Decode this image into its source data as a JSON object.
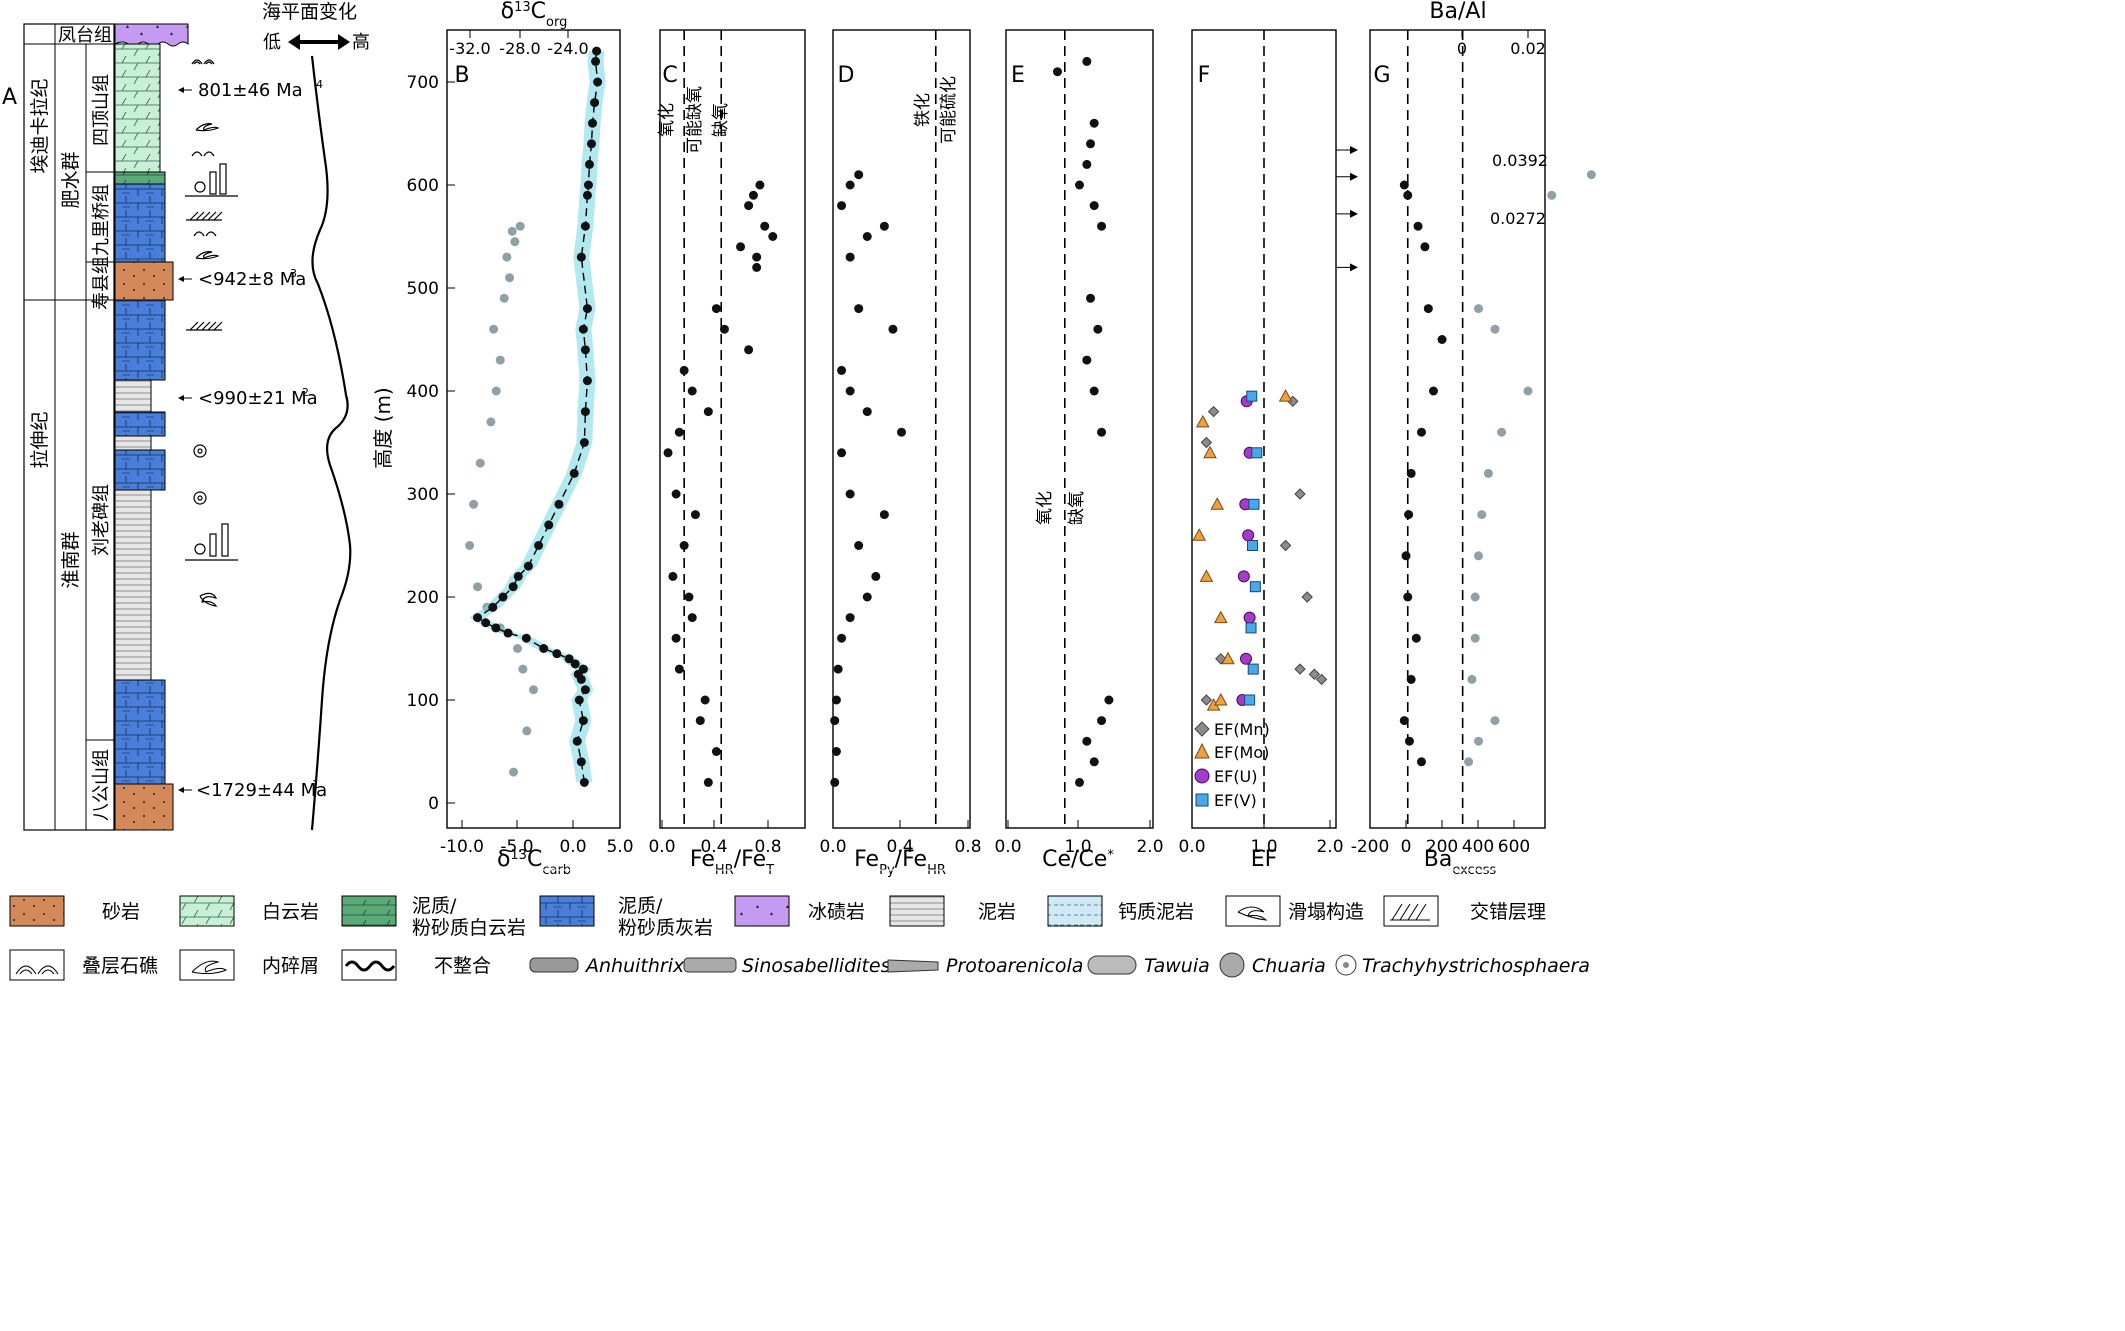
{
  "panel_labels": [
    "A",
    "B",
    "C",
    "D",
    "E",
    "F",
    "G"
  ],
  "strat": {
    "systems": [
      {
        "id": "cryo-sys",
        "label": "埃迪卡拉纪"
      },
      {
        "id": "tonian-sys",
        "label": "拉伸纪"
      }
    ],
    "groups": [
      {
        "id": "feishui",
        "label": "肥水群"
      },
      {
        "id": "huainan",
        "label": "淮南群"
      }
    ],
    "formations": [
      {
        "id": "fengtai",
        "label": "凤台组"
      },
      {
        "id": "sidingshan",
        "label": "四顶山组"
      },
      {
        "id": "jiuliqiao",
        "label": "九里桥组"
      },
      {
        "id": "shouxian",
        "label": "寿县组"
      },
      {
        "id": "liulaobei",
        "label": "刘老碑组"
      },
      {
        "id": "bagongshan",
        "label": "八公山组"
      }
    ],
    "ages": [
      "801±46 Ma",
      "<942±8 Ma",
      "<990±21 Ma",
      "<1729±44 Ma"
    ],
    "age_refs": [
      "4",
      "3",
      "2",
      "1"
    ],
    "sea_level": {
      "title": "海平面变化",
      "low": "低",
      "high": "高"
    }
  },
  "y_axis": {
    "label": "高度 (m)",
    "ticks": [
      "0",
      "100",
      "200",
      "300",
      "400",
      "500",
      "600",
      "700"
    ]
  },
  "panels": {
    "B": {
      "top_title": "δ",
      "top_title_sup": "13",
      "top_title_main": "C",
      "top_title_sub": "org",
      "top_ticks": [
        "-32.0",
        "-28.0",
        "-24.0"
      ],
      "bottom_ticks": [
        "-10.0",
        "-5.0",
        "0.0",
        "5.0"
      ],
      "xlabel_d": "δ",
      "xlabel_sup": "13",
      "xlabel_main": "C",
      "xlabel_sub": "carb"
    },
    "C": {
      "ticks": [
        "0.0",
        "0.4",
        "0.8"
      ],
      "xlabel_main": "Fe",
      "xlabel_sub1": "HR",
      "xlabel_mid": "/Fe",
      "xlabel_sub2": "T",
      "zone_labels": [
        "氧化",
        "可能缺氧",
        "缺氧"
      ]
    },
    "D": {
      "ticks": [
        "0.0",
        "0.4",
        "0.8"
      ],
      "xlabel_main": "Fe",
      "xlabel_sub1": "Py",
      "xlabel_mid": "/Fe",
      "xlabel_sub2": "HR",
      "zone_labels": [
        "铁化",
        "可能硫化"
      ]
    },
    "E": {
      "ticks": [
        "0.0",
        "1.0",
        "2.0"
      ],
      "xlabel_main": "Ce/Ce",
      "xlabel_sup": "*",
      "zone_labels": [
        "氧化",
        "缺氧"
      ]
    },
    "F": {
      "ticks": [
        "0.0",
        "1.0",
        "2.0"
      ],
      "xlabel": "EF",
      "legend": [
        "EF(Mn)",
        "EF(Mo)",
        "EF(U)",
        "EF(V)"
      ]
    },
    "G": {
      "title": "Ba/Al",
      "top_ticks": [
        "0",
        "0.02"
      ],
      "bottom_ticks": [
        "-200",
        "0",
        "200",
        "400",
        "600"
      ],
      "xlabel_main": "Ba",
      "xlabel_sub": "excess",
      "annotations": [
        "0.0392",
        "0.0272"
      ]
    }
  },
  "legend": {
    "lithology": [
      "砂岩",
      "白云岩",
      "泥质/\n粉砂质白云岩",
      "泥质/\n粉砂质灰岩",
      "冰碛岩",
      "泥岩",
      "钙质泥岩",
      "滑塌构造",
      "交错层理"
    ],
    "structures": [
      "叠层石礁",
      "内碎屑",
      "不整合"
    ],
    "fossils": [
      "Anhuithrix",
      "Sinosabellidites",
      "Protoarenicola",
      "Tawuia",
      "Chuaria",
      "Trachyhystrichosphaera"
    ]
  },
  "colors": {
    "sandstone": "#d4895a",
    "dolomite": "#c9efd9",
    "argdolo": "#5aaa78",
    "limestone": "#4a7fd9",
    "tillite": "#c59af2",
    "mudstone": "#e6e6e6",
    "calcmud": "#cfeaf6",
    "black": "#111111",
    "grey": "#8fa0a6",
    "cyan": "#7fd8e6",
    "mn": "#8c8c8c",
    "mo": "#f0a040",
    "u": "#a43cc8",
    "v": "#4aa8e8"
  },
  "chart_data": [
    {
      "panel": "B",
      "type": "scatter",
      "ylabel": "高度 (m)",
      "ylim": [
        0,
        740
      ],
      "series": [
        {
          "axis": "δ13Ccarb",
          "xlim": [
            -12,
            5
          ],
          "note": "black points with LOWESS curve",
          "x": [
            1.5,
            1.2,
            0.8,
            1.4,
            1.0,
            1.6,
            1.2,
            0.9,
            1.4,
            0.6,
            0.0,
            -1.2,
            -2.5,
            -4.2,
            -6.0,
            -7.2,
            -8.2,
            -9.0,
            -7.5,
            -6.5,
            -5.5,
            -5.0,
            -4.0,
            -3.0,
            -2.0,
            -1.0,
            0.5,
            1.5,
            1.6,
            1.8,
            1.6,
            1.4,
            1.8,
            1.2,
            1.6,
            1.8,
            1.9,
            2.0,
            2.2,
            2.3,
            2.5,
            2.8,
            2.6,
            2.7
          ],
          "y": [
            20,
            40,
            60,
            80,
            100,
            110,
            120,
            125,
            130,
            135,
            140,
            145,
            150,
            160,
            165,
            170,
            175,
            180,
            190,
            200,
            210,
            220,
            230,
            250,
            270,
            290,
            320,
            350,
            380,
            410,
            440,
            460,
            480,
            530,
            560,
            590,
            600,
            620,
            640,
            660,
            680,
            700,
            720,
            730
          ]
        },
        {
          "axis": "δ13Corg",
          "xlim": [
            -33.5,
            -20.5
          ],
          "note": "grey points",
          "x": [
            -28.5,
            -27.5,
            -27.0,
            -27.8,
            -28.2,
            -29.5,
            -30.5,
            -31.2,
            -31.8,
            -31.5,
            -31.0,
            -30.2,
            -29.8,
            -29.5,
            -30.0,
            -29.2,
            -28.8,
            -29.0,
            -28.4,
            -28.6,
            -28.0
          ],
          "y": [
            30,
            70,
            110,
            130,
            150,
            170,
            190,
            210,
            250,
            290,
            330,
            370,
            400,
            430,
            460,
            490,
            510,
            530,
            545,
            555,
            560
          ]
        }
      ]
    },
    {
      "panel": "C",
      "type": "scatter",
      "xlabel": "FeHR/FeT",
      "xlim": [
        0,
        0.9
      ],
      "ylim": [
        0,
        740
      ],
      "thresholds": [
        0.15,
        0.38
      ],
      "x": [
        0.3,
        0.35,
        0.25,
        0.28,
        0.12,
        0.1,
        0.2,
        0.18,
        0.08,
        0.15,
        0.22,
        0.1,
        0.05,
        0.12,
        0.3,
        0.2,
        0.15,
        0.55,
        0.4,
        0.35,
        0.6,
        0.5,
        0.65,
        0.55,
        0.58,
        0.62,
        0.7,
        0.6
      ],
      "y": [
        20,
        50,
        80,
        100,
        130,
        160,
        180,
        200,
        220,
        250,
        280,
        300,
        340,
        360,
        380,
        400,
        420,
        440,
        460,
        480,
        520,
        540,
        560,
        580,
        590,
        600,
        550,
        530
      ]
    },
    {
      "panel": "D",
      "type": "scatter",
      "xlabel": "FePy/FeHR",
      "xlim": [
        0,
        0.8
      ],
      "ylim": [
        0,
        740
      ],
      "thresholds": [
        0.6
      ],
      "x": [
        0.01,
        0.02,
        0.01,
        0.02,
        0.03,
        0.05,
        0.1,
        0.2,
        0.25,
        0.15,
        0.3,
        0.1,
        0.05,
        0.4,
        0.2,
        0.1,
        0.05,
        0.35,
        0.15,
        0.1,
        0.2,
        0.3,
        0.05,
        0.1,
        0.15
      ],
      "y": [
        20,
        50,
        80,
        100,
        130,
        160,
        180,
        200,
        220,
        250,
        280,
        300,
        340,
        360,
        380,
        400,
        420,
        460,
        480,
        530,
        550,
        560,
        580,
        600,
        610
      ]
    },
    {
      "panel": "E",
      "type": "scatter",
      "xlabel": "Ce/Ce*",
      "xlim": [
        0,
        2
      ],
      "ylim": [
        0,
        740
      ],
      "thresholds": [
        0.8
      ],
      "x": [
        1.0,
        1.2,
        1.1,
        1.3,
        1.4,
        1.3,
        1.2,
        1.1,
        1.25,
        1.15,
        1.3,
        1.2,
        1.0,
        1.1,
        1.15,
        1.2,
        0.7,
        1.1
      ],
      "y": [
        20,
        40,
        60,
        80,
        100,
        360,
        400,
        430,
        460,
        490,
        560,
        580,
        600,
        620,
        640,
        660,
        710,
        720
      ]
    },
    {
      "panel": "F",
      "type": "scatter",
      "xlabel": "EF",
      "xlim": [
        0,
        2
      ],
      "ylim": [
        0,
        740
      ],
      "thresholds": [
        1.0
      ],
      "series": [
        {
          "name": "EF(Mn)",
          "x": [
            0.2,
            0.4,
            1.5,
            1.7,
            1.8,
            1.6,
            1.3,
            1.5,
            1.4,
            0.3,
            0.2
          ],
          "y": [
            100,
            140,
            130,
            125,
            120,
            200,
            250,
            300,
            390,
            380,
            350
          ]
        },
        {
          "name": "EF(Mo)",
          "x": [
            0.3,
            0.5,
            0.4,
            0.2,
            0.1,
            0.35,
            0.25,
            0.15,
            1.3,
            0.4
          ],
          "y": [
            95,
            140,
            180,
            220,
            260,
            290,
            340,
            370,
            395,
            100
          ]
        },
        {
          "name": "EF(U)",
          "x": [
            0.7,
            0.75,
            0.8,
            0.72,
            0.78,
            0.74,
            0.8,
            0.76
          ],
          "y": [
            100,
            140,
            180,
            220,
            260,
            290,
            340,
            390
          ]
        },
        {
          "name": "EF(V)",
          "x": [
            0.8,
            0.85,
            0.82,
            0.88,
            0.84,
            0.86,
            0.9,
            0.83
          ],
          "y": [
            100,
            130,
            170,
            210,
            250,
            290,
            340,
            395
          ]
        }
      ]
    },
    {
      "panel": "G",
      "type": "scatter",
      "xlabel": "Ba_excess",
      "xlim": [
        -220,
        800
      ],
      "ylim": [
        0,
        740
      ],
      "thresholds": [
        0,
        320
      ],
      "series": [
        {
          "name": "Ba_excess",
          "x": [
            -20,
            10,
            80,
            20,
            50,
            0,
            -10,
            5,
            20,
            80,
            150,
            200,
            120,
            100,
            60,
            0,
            -20
          ],
          "y": [
            80,
            60,
            40,
            120,
            160,
            200,
            240,
            280,
            320,
            360,
            400,
            450,
            480,
            540,
            560,
            590,
            600
          ]
        },
        {
          "name": "Ba/Al",
          "x": [
            0.002,
            0.005,
            0.01,
            0.003,
            0.004,
            0.004,
            0.005,
            0.006,
            0.008,
            0.012,
            0.02,
            0.01,
            0.005,
            0.0272,
            0.0392
          ],
          "y": [
            40,
            60,
            80,
            120,
            160,
            200,
            240,
            280,
            320,
            360,
            400,
            460,
            480,
            590,
            610
          ]
        }
      ]
    }
  ]
}
